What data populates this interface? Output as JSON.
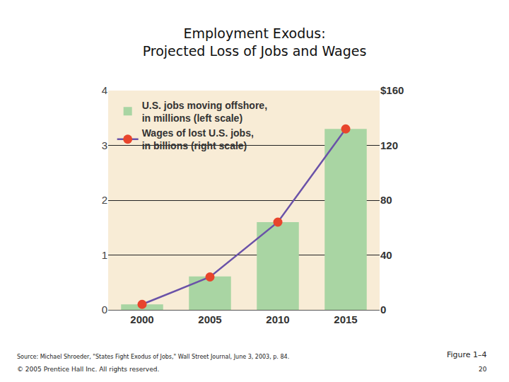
{
  "chart_data": {
    "type": "bar",
    "title": "Employment Exodus: Projected Loss of Jobs and Wages",
    "categories": [
      "2000",
      "2005",
      "2010",
      "2015"
    ],
    "series": [
      {
        "name": "U.S. jobs moving offshore, in millions (left scale)",
        "type": "bar",
        "color": "#a9d5a3",
        "values": [
          0.1,
          0.61,
          1.6,
          3.3
        ]
      },
      {
        "name": "Wages of lost U.S. jobs, in billions (right scale)",
        "type": "line",
        "axis": "y2",
        "color": "#e8452c",
        "marker": "circle",
        "values": [
          4,
          24,
          64,
          132
        ]
      }
    ],
    "ylim": [
      0,
      4
    ],
    "yticks": [
      0,
      1,
      2,
      3,
      4
    ],
    "y2lim": [
      0,
      160
    ],
    "y2ticks": [
      0,
      40,
      80,
      120,
      {
        "value": 160,
        "label": "$160"
      }
    ],
    "grid": true,
    "legend": "top-left",
    "annotations": [
      "Source: Michael Shroeder, \"States Fight Exodus of Jobs,\" Wall Street Journal, June 3, 2003, p. 84.",
      "© 2005 Prentice Hall Inc. All rights reserved.",
      "Figure 1–4",
      "20"
    ]
  }
}
